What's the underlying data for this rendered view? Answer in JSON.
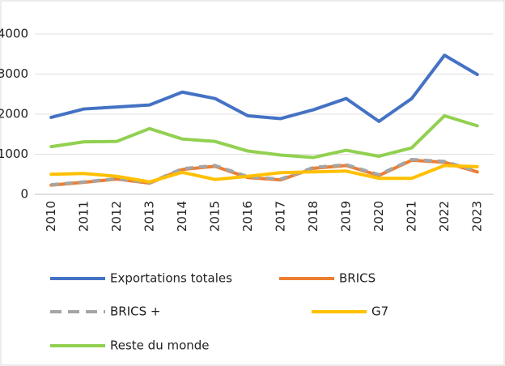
{
  "chart_data": {
    "type": "line",
    "categories": [
      "2010",
      "2011",
      "2012",
      "2013",
      "2014",
      "2015",
      "2016",
      "2017",
      "2018",
      "2019",
      "2020",
      "2021",
      "2022",
      "2023"
    ],
    "series": [
      {
        "name": "Exportations totales",
        "color": "#4472c4",
        "values": [
          1920,
          2130,
          2180,
          2230,
          2550,
          2390,
          1960,
          1890,
          2110,
          2390,
          1820,
          2390,
          3470,
          2990
        ]
      },
      {
        "name": "BRICS",
        "color": "#ed7d31",
        "values": [
          230,
          300,
          380,
          280,
          620,
          700,
          420,
          360,
          650,
          720,
          470,
          850,
          800,
          560
        ]
      },
      {
        "name": "BRICS +",
        "color": "#a5a5a5",
        "dashed": true,
        "values": [
          240,
          310,
          390,
          290,
          640,
          720,
          440,
          380,
          670,
          740,
          490,
          870,
          820,
          580
        ]
      },
      {
        "name": "G7",
        "color": "#ffc000",
        "values": [
          500,
          520,
          450,
          310,
          550,
          370,
          450,
          540,
          560,
          580,
          400,
          400,
          720,
          690
        ]
      },
      {
        "name": "Reste du monde",
        "color": "#92d050",
        "values": [
          1190,
          1310,
          1320,
          1640,
          1380,
          1320,
          1080,
          980,
          920,
          1100,
          950,
          1160,
          1960,
          1710
        ]
      }
    ],
    "ylim": [
      0,
      4000
    ],
    "yticks": [
      0,
      1000,
      2000,
      3000,
      4000
    ],
    "grid": true,
    "legend": "bottom"
  }
}
